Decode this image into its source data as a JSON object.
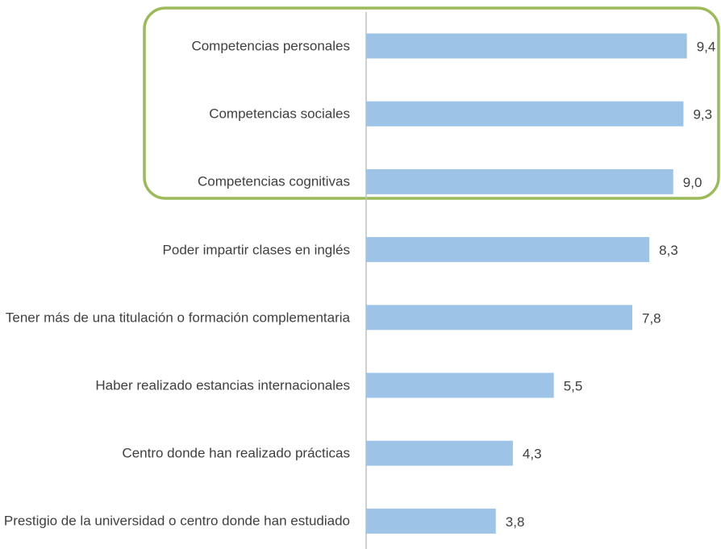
{
  "chart_data": {
    "type": "bar",
    "orientation": "horizontal",
    "categories": [
      "Competencias personales",
      "Competencias sociales",
      "Competencias cognitivas",
      "Poder impartir clases en inglés",
      "Tener más de una titulación o formación complementaria",
      "Haber realizado estancias internacionales",
      "Centro donde han realizado prácticas",
      "Prestigio de la universidad o centro donde han estudiado"
    ],
    "values": [
      9.4,
      9.3,
      9.0,
      8.3,
      7.8,
      5.5,
      4.3,
      3.8
    ],
    "value_labels": [
      "9,4",
      "9,3",
      "9,0",
      "8,3",
      "7,8",
      "5,5",
      "4,3",
      "3,8"
    ],
    "color": "#9dc3e6",
    "xlim": [
      0,
      10.4
    ]
  }
}
